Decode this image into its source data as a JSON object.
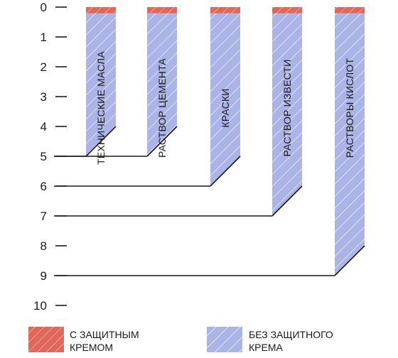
{
  "chart_data": {
    "type": "bar",
    "orientation": "vertical-downward",
    "y_ticks": [
      "0",
      "1",
      "2",
      "3",
      "4",
      "5",
      "6",
      "7",
      "8",
      "9",
      "10"
    ],
    "ylim": [
      0,
      10
    ],
    "categories": [
      "ТЕХНИЧЕСКИЕ МАСЛА",
      "РАСТВОР ЦЕМЕНТА",
      "КРАСКИ",
      "РАСТВОР ИЗВЕСТИ",
      "РАСТВОРЫ КИСЛОТ"
    ],
    "series": [
      {
        "name": "С ЗАЩИТНЫМ КРЕМОМ",
        "values": [
          0.25,
          0.25,
          0.25,
          0.25,
          0.25
        ]
      },
      {
        "name": "БЕЗ ЗАЩИТНОГО КРЕМА",
        "values": [
          5,
          5,
          6,
          7,
          9
        ]
      }
    ],
    "legend": {
      "position": "bottom",
      "items": [
        {
          "line1": "С ЗАЩИТНЫМ",
          "line2": "КРЕМОМ",
          "color": "#e0685a"
        },
        {
          "line1": "БЕЗ ЗАЩИТНОГО",
          "line2": "КРЕМА",
          "color": "#aab4e6"
        }
      ]
    },
    "colors": {
      "with_cream": "#e0685a",
      "without_cream": "#aab4e6",
      "hatch": "#ffffff",
      "axis": "#1a1a1a"
    }
  }
}
